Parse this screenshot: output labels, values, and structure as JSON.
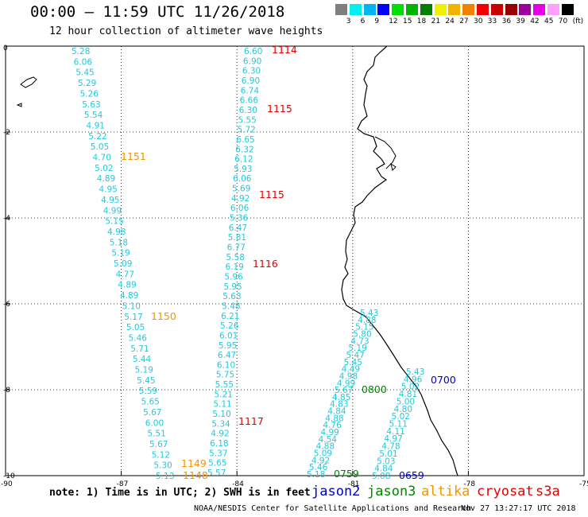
{
  "header": {
    "title": "00:00 – 11:59 UTC 11/26/2018",
    "subtitle": "12 hour collection of altimeter wave heights"
  },
  "colorbar": {
    "swatches": [
      "#7f7f7f",
      "#00f0f0",
      "#00b4f0",
      "#0000ff",
      "#00e000",
      "#00b400",
      "#008000",
      "#f0f000",
      "#f0b400",
      "#f08000",
      "#f00000",
      "#c80000",
      "#960000",
      "#9b009b",
      "#e600e6",
      "#ffa0ff",
      "#000000"
    ],
    "labels": [
      "3",
      "6",
      "9",
      "12",
      "15",
      "18",
      "21",
      "24",
      "27",
      "30",
      "33",
      "36",
      "39",
      "42",
      "45",
      "70",
      "(ft)"
    ]
  },
  "axes": {
    "lon_labels": [
      "-90",
      "-87",
      "-84",
      "-81",
      "-78",
      "-75"
    ],
    "lat_labels": [
      "0",
      "-2",
      "-4",
      "-6",
      "-8",
      "-10"
    ]
  },
  "colors": {
    "swh": "#22c8dc",
    "jason2": "#0000cc",
    "jason3": "#008800",
    "altika": "#f09600",
    "cryosat": "#e60000",
    "s3a": "#e60000",
    "coast": "#000000",
    "grid": "#000000"
  },
  "tracks": {
    "track1": {
      "values": [
        "5.28",
        "6.06",
        "5.45",
        "5.29",
        "5.26",
        "5.63",
        "5.54",
        "4.91",
        "5.22",
        "5.05",
        "4.70",
        "5.02",
        "4.89",
        "4.95",
        "4.95",
        "4.99",
        "5.15",
        "4.98",
        "5.18",
        "5.19",
        "5.09",
        "4.77",
        "4.89",
        "4.89",
        "5.10",
        "5.17",
        "5.05",
        "5.46",
        "5.71",
        "5.44",
        "5.19",
        "5.45",
        "5.59",
        "5.65",
        "5.67",
        "6.00",
        "5.51",
        "5.67",
        "5.12",
        "5.30",
        "5.13"
      ]
    },
    "track2": {
      "values": [
        "6.60",
        "6.90",
        "6.30",
        "6.90",
        "6.74",
        "6.66",
        "6.30",
        "5.55",
        "5.72",
        "6.65",
        "6.32",
        "6.12",
        "5.93",
        "6.06",
        "5.69",
        "4.92",
        "6.06",
        "5.36",
        "6.47",
        "5.81",
        "6.77",
        "5.58",
        "6.19",
        "5.96",
        "5.95",
        "5.63",
        "5.48",
        "6.21",
        "5.26",
        "6.01",
        "5.95",
        "6.47",
        "6.10",
        "5.75",
        "5.55",
        "5.21",
        "5.11",
        "5.10",
        "5.34",
        "4.92",
        "6.18",
        "5.37",
        "5.65",
        "5.57"
      ]
    },
    "track3": {
      "values": [
        "5.43",
        "4.88",
        "5.15",
        "5.80",
        "4.73",
        "5.19",
        "5.47",
        "5.45",
        "4.49",
        "4.98",
        "4.99",
        "5.67",
        "4.85",
        "4.83",
        "4.84",
        "4.88",
        "4.76",
        "4.99",
        "4.54",
        "4.88",
        "5.09",
        "4.92",
        "5.46",
        "5.18"
      ]
    },
    "track4": {
      "values": [
        "5.43",
        "4.96",
        "5.02",
        "4.81",
        "5.00",
        "4.80",
        "5.02",
        "5.11",
        "4.11",
        "4.97",
        "4.78",
        "5.01",
        "5.03",
        "4.84",
        "5.08"
      ]
    }
  },
  "time_labels": [
    {
      "text": "1114",
      "sat": "cryosat"
    },
    {
      "text": "1115",
      "sat": "cryosat"
    },
    {
      "text": "1151",
      "sat": "altika"
    },
    {
      "text": "1115",
      "sat": "cryosat"
    },
    {
      "text": "1116",
      "sat": "cryosat"
    },
    {
      "text": "1150",
      "sat": "altika"
    },
    {
      "text": "0800",
      "sat": "jason3"
    },
    {
      "text": "0700",
      "sat": "jason2"
    },
    {
      "text": "1117",
      "sat": "cryosat"
    },
    {
      "text": "1149",
      "sat": "altika"
    },
    {
      "text": "1148",
      "sat": "altika"
    },
    {
      "text": "0759",
      "sat": "jason3"
    },
    {
      "text": "0659",
      "sat": "jason2"
    }
  ],
  "footer": {
    "note": "note: 1) Time is in UTC; 2) SWH is in feet",
    "sat_jason2": "jason2",
    "sat_jason3": "jason3",
    "sat_altika": "altika",
    "sat_cryosat": "cryosat",
    "sat_s3a": "s3a",
    "credit": "NOAA/NESDIS Center for Satellite Applications and Research",
    "timestamp": "Nov 27 13:27:17 UTC 2018"
  }
}
